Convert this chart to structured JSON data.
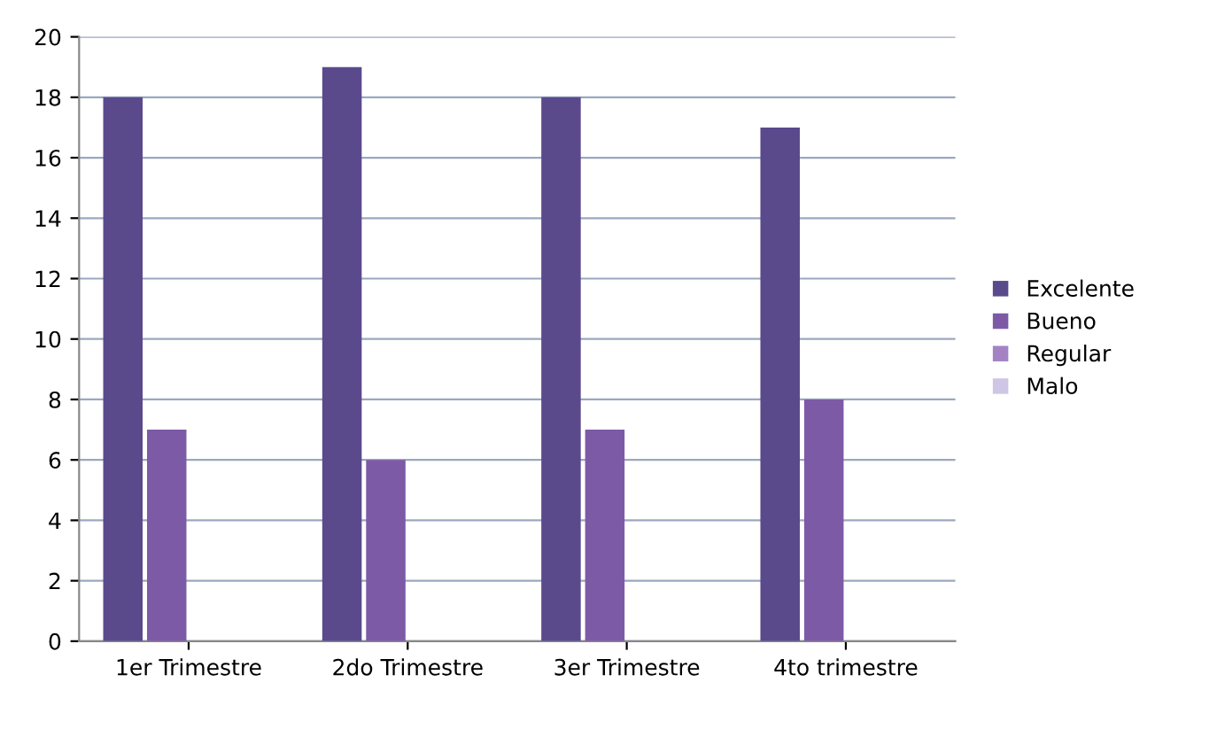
{
  "chart_data": {
    "type": "bar",
    "categories": [
      "1er Trimestre",
      "2do Trimestre",
      "3er Trimestre",
      "4to trimestre"
    ],
    "series": [
      {
        "name": "Excelente",
        "color": "#5a4a8c",
        "values": [
          18,
          19,
          18,
          17
        ]
      },
      {
        "name": "Bueno",
        "color": "#7d5aa6",
        "values": [
          7,
          6,
          7,
          8
        ]
      },
      {
        "name": "Regular",
        "color": "#a383c4",
        "values": [
          0,
          0,
          0,
          0
        ]
      },
      {
        "name": "Malo",
        "color": "#cdc6e4",
        "values": [
          0,
          0,
          0,
          0
        ]
      }
    ],
    "ylim": [
      0,
      20
    ],
    "yticks": [
      0,
      2,
      4,
      6,
      8,
      10,
      12,
      14,
      16,
      18,
      20
    ],
    "grid": "y",
    "legend": "right"
  }
}
